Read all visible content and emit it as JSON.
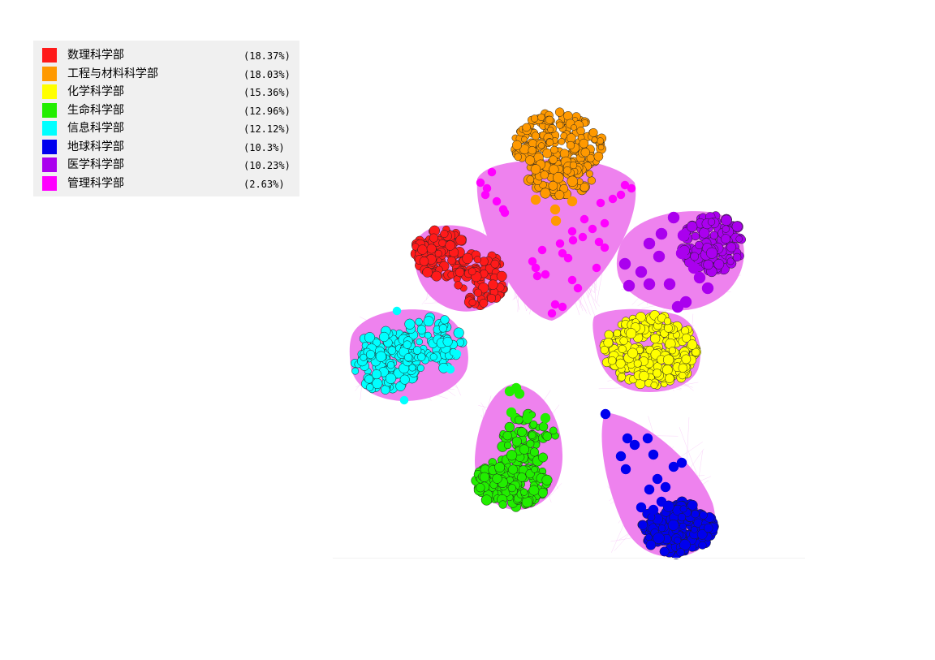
{
  "legend": [
    {
      "label": "数理科学部",
      "percent": "(18.37%)",
      "color": "#ff1a1a"
    },
    {
      "label": "工程与材料科学部",
      "percent": "(18.03%)",
      "color": "#ff9900"
    },
    {
      "label": "化学科学部",
      "percent": "(15.36%)",
      "color": "#ffff00"
    },
    {
      "label": "生命科学部",
      "percent": "(12.96%)",
      "color": "#22ee00"
    },
    {
      "label": "信息科学部",
      "percent": "(12.12%)",
      "color": "#00ffff"
    },
    {
      "label": "地球科学部",
      "percent": "(10.3%)",
      "color": "#0000ee"
    },
    {
      "label": "医学科学部",
      "percent": "(10.23%)",
      "color": "#aa00ee"
    },
    {
      "label": "管理科学部",
      "percent": "(2.63%)",
      "color": "#ff00ff"
    }
  ],
  "hull_color": "#ee82ee",
  "edge_color": "#f4a6f4"
}
